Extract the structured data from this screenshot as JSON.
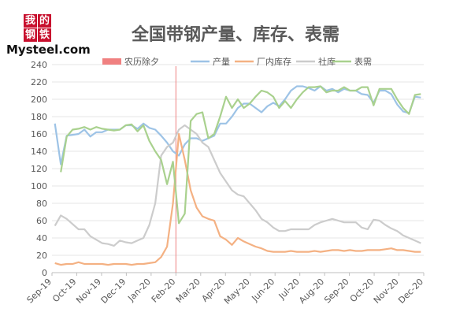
{
  "logo": {
    "char1": "我",
    "char2": "的",
    "char3": "钢",
    "char4": "铁",
    "text": "Mysteel.com"
  },
  "chart_data": {
    "type": "line",
    "title": "全国带钢产量、库存、表需",
    "ylim": [
      0,
      240
    ],
    "yticks": [
      0,
      20,
      40,
      60,
      80,
      100,
      120,
      140,
      160,
      180,
      200,
      220,
      240
    ],
    "xticks": [
      "Sep-19",
      "Oct-19",
      "Nov-19",
      "Dec-19",
      "Jan-20",
      "Feb-20",
      "Mar-20",
      "Apr-20",
      "May-20",
      "Jun-20",
      "Jul-20",
      "Aug-20",
      "Sep-20",
      "Oct-20",
      "Nov-20",
      "Dec-20"
    ],
    "grid": "horizontal",
    "legend": "top",
    "marker": {
      "name": "农历除夕",
      "color": "#f08080",
      "x": 20.5
    },
    "series": [
      {
        "name": "产量",
        "color": "#9dc3e6",
        "values": [
          172,
          125,
          158,
          159,
          160,
          165,
          157,
          162,
          162,
          165,
          165,
          165,
          170,
          170,
          166,
          172,
          167,
          165,
          158,
          150,
          140,
          135,
          148,
          155,
          155,
          152,
          155,
          158,
          172,
          172,
          180,
          190,
          195,
          195,
          190,
          185,
          192,
          196,
          192,
          200,
          210,
          215,
          215,
          213,
          210,
          215,
          210,
          212,
          208,
          212,
          210,
          210,
          206,
          205,
          196,
          210,
          210,
          206,
          194,
          186,
          184,
          203,
          202
        ]
      },
      {
        "name": "厂内库存",
        "color": "#f4b183",
        "values": [
          11,
          9,
          10,
          10,
          12,
          10,
          10,
          10,
          10,
          9,
          10,
          10,
          10,
          9,
          10,
          10,
          11,
          12,
          18,
          30,
          80,
          160,
          130,
          95,
          75,
          65,
          62,
          60,
          42,
          38,
          32,
          40,
          36,
          33,
          30,
          28,
          25,
          24,
          24,
          24,
          25,
          24,
          24,
          24,
          25,
          24,
          25,
          26,
          26,
          25,
          26,
          25,
          25,
          26,
          26,
          26,
          27,
          28,
          26,
          26,
          25,
          24,
          24
        ]
      },
      {
        "name": "社库",
        "color": "#cccccc",
        "values": [
          54,
          66,
          62,
          56,
          50,
          50,
          42,
          38,
          34,
          33,
          31,
          37,
          35,
          34,
          37,
          40,
          55,
          80,
          135,
          145,
          150,
          165,
          170,
          165,
          160,
          150,
          145,
          130,
          115,
          105,
          95,
          90,
          88,
          80,
          72,
          62,
          58,
          52,
          48,
          48,
          50,
          50,
          50,
          50,
          55,
          58,
          60,
          62,
          60,
          58,
          58,
          58,
          52,
          50,
          61,
          60,
          55,
          51,
          48,
          43,
          40,
          37,
          34
        ]
      },
      {
        "name": "表需",
        "color": "#a9d18e",
        "values": [
          null,
          116,
          157,
          165,
          166,
          168,
          165,
          168,
          166,
          165,
          164,
          165,
          170,
          171,
          163,
          170,
          152,
          140,
          130,
          102,
          128,
          57,
          68,
          175,
          183,
          185,
          155,
          160,
          180,
          203,
          190,
          200,
          190,
          195,
          203,
          210,
          208,
          203,
          190,
          198,
          190,
          200,
          208,
          214,
          214,
          215,
          208,
          210,
          210,
          214,
          210,
          210,
          214,
          214,
          193,
          212,
          212,
          212,
          200,
          190,
          183,
          205,
          206
        ]
      }
    ]
  }
}
